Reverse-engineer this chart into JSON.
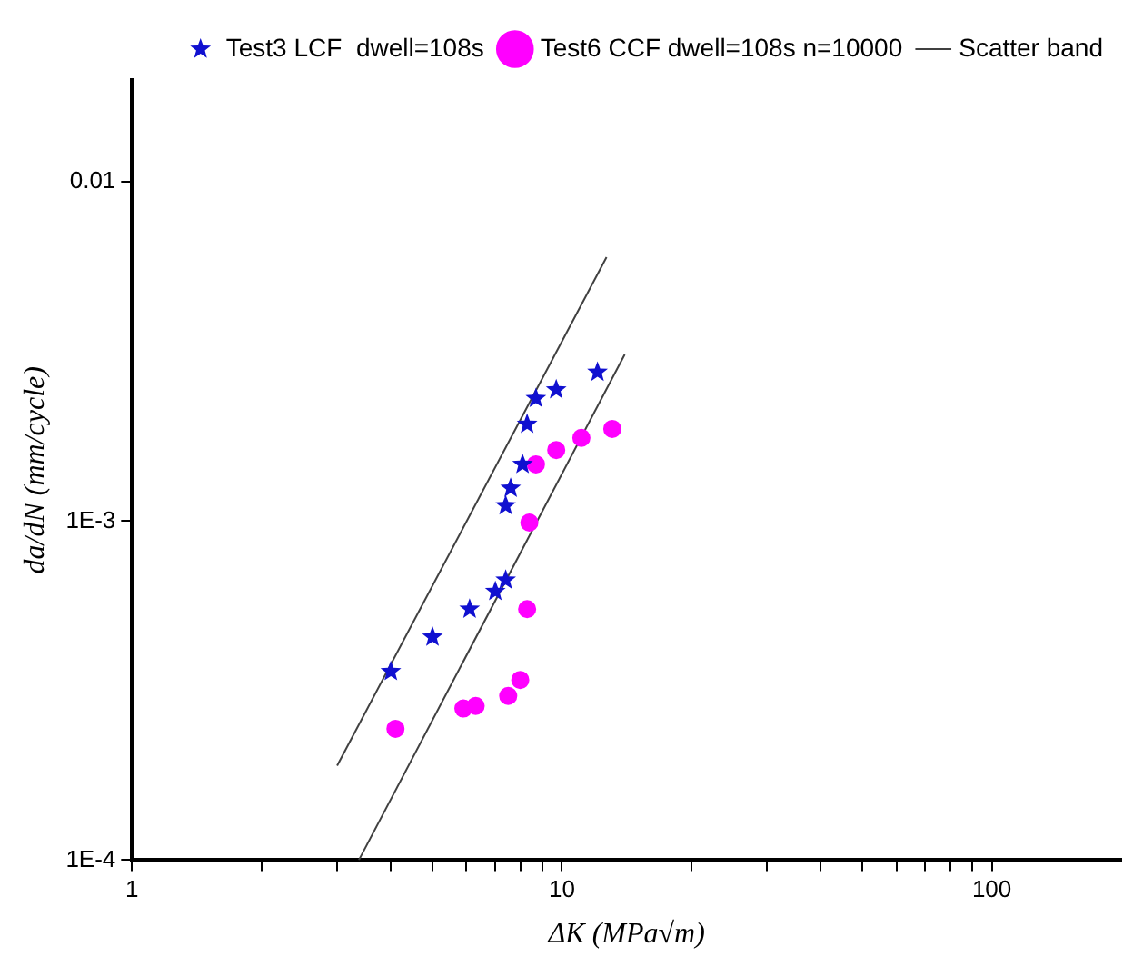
{
  "chart_data": {
    "type": "scatter",
    "xlabel": "ΔK (MPa√m)",
    "ylabel": "da/dN (mm/cycle)",
    "log": "xy",
    "xlim": [
      1,
      200
    ],
    "ylim": [
      0.0001,
      0.02
    ],
    "xticks": [
      1,
      {
        "value": 2,
        "label": null
      },
      {
        "value": 3,
        "label": null
      },
      {
        "value": 4,
        "label": null
      },
      {
        "value": 5,
        "label": null
      },
      {
        "value": 6,
        "label": null
      },
      {
        "value": 7,
        "label": null
      },
      {
        "value": 8,
        "label": null
      },
      {
        "value": 9,
        "label": null
      },
      10,
      {
        "value": 20,
        "label": null
      },
      {
        "value": 30,
        "label": null
      },
      {
        "value": 40,
        "label": null
      },
      {
        "value": 50,
        "label": null
      },
      {
        "value": 60,
        "label": null
      },
      {
        "value": 70,
        "label": null
      },
      {
        "value": 80,
        "label": null
      },
      {
        "value": 90,
        "label": null
      },
      100
    ],
    "yticks": [
      {
        "value": 0.0001,
        "label": "1E-4"
      },
      {
        "value": 0.001,
        "label": "1E-3"
      },
      0.01
    ],
    "grid": false,
    "legend": "top right",
    "series": [
      {
        "name": "Test3 LCF  dwell=108s",
        "color": "#1010d0",
        "marker": "star",
        "x": [
          4.0,
          5.0,
          6.1,
          7.0,
          7.4,
          7.4,
          7.6,
          8.1,
          8.3,
          8.7,
          9.7,
          12.1
        ],
        "values": [
          0.00036,
          0.000455,
          0.00055,
          0.00062,
          0.00067,
          0.00111,
          0.00125,
          0.00147,
          0.00193,
          0.0023,
          0.00244,
          0.00275
        ]
      },
      {
        "name": "Test6 CCF dwell=108s n=10000",
        "color": "#ff00ff",
        "marker": "circle",
        "x": [
          4.1,
          5.9,
          6.3,
          7.5,
          8.0,
          8.3,
          8.4,
          8.7,
          9.7,
          11.1,
          13.1
        ],
        "values": [
          0.000244,
          0.00028,
          0.000285,
          0.000305,
          0.00034,
          0.00055,
          0.00099,
          0.00147,
          0.00162,
          0.00176,
          0.00187
        ]
      },
      {
        "name": "Scatter band",
        "type": "line",
        "color": "#404040",
        "marker": "none",
        "x": [
          3.0,
          12.7
        ],
        "values": [
          0.00019,
          0.006
        ]
      },
      {
        "type": "line",
        "color": "#404040",
        "marker": "none",
        "x": [
          3.37,
          14.0
        ],
        "values": [
          0.0001,
          0.0031
        ]
      }
    ]
  }
}
